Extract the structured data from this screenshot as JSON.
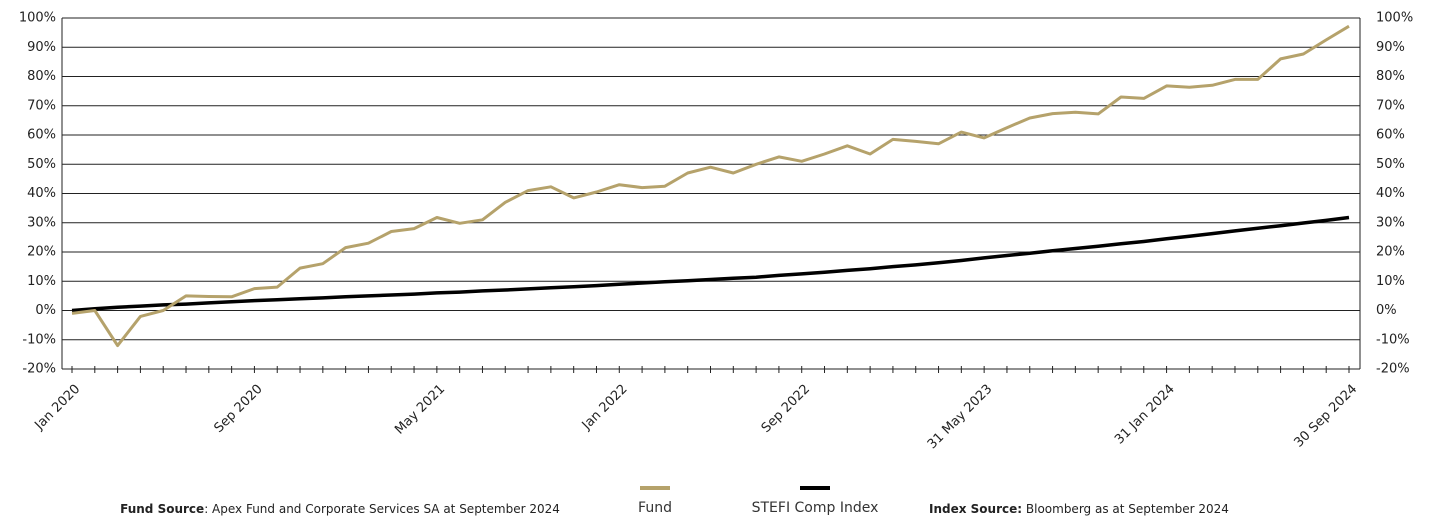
{
  "chart_data": {
    "type": "line",
    "categories": [
      "Jan 2020",
      null,
      null,
      null,
      null,
      null,
      null,
      null,
      "Sep 2020",
      null,
      null,
      null,
      null,
      null,
      null,
      null,
      "May 2021",
      null,
      null,
      null,
      null,
      null,
      null,
      null,
      "Jan 2022",
      null,
      null,
      null,
      null,
      null,
      null,
      null,
      "Sep 2022",
      null,
      null,
      null,
      null,
      null,
      null,
      null,
      "31 May 2023",
      null,
      null,
      null,
      null,
      null,
      null,
      null,
      "31 Jan 2024",
      null,
      null,
      null,
      null,
      null,
      null,
      null,
      "30 Sep 2024"
    ],
    "series": [
      {
        "name": "Fund",
        "color": "#b5a26b",
        "values": [
          -1,
          0,
          -12,
          -2,
          0,
          5,
          4.8,
          4.7,
          7.5,
          8,
          14.5,
          16,
          21.5,
          23,
          27,
          28,
          31.8,
          29.8,
          31,
          37,
          41,
          42.3,
          38.5,
          40.5,
          43,
          42,
          42.5,
          47,
          49,
          47,
          50,
          52.5,
          51,
          53.5,
          56.3,
          53.5,
          58.5,
          57.8,
          57,
          61,
          59,
          62.5,
          65.8,
          67.3,
          67.8,
          67.2,
          73,
          72.5,
          76.8,
          76.3,
          77,
          79,
          79,
          86,
          87.7,
          92.5,
          97.2
        ]
      },
      {
        "name": "STEFI Comp Index",
        "color": "#000000",
        "values": [
          0,
          0.6,
          1.1,
          1.5,
          1.9,
          2.2,
          2.6,
          3.0,
          3.4,
          3.7,
          4.0,
          4.3,
          4.7,
          5.0,
          5.3,
          5.6,
          6.0,
          6.3,
          6.7,
          7.0,
          7.4,
          7.8,
          8.1,
          8.5,
          9.0,
          9.4,
          9.8,
          10.2,
          10.6,
          11.0,
          11.4,
          12.0,
          12.5,
          13.1,
          13.7,
          14.3,
          15.0,
          15.6,
          16.3,
          17.1,
          18.0,
          18.8,
          19.6,
          20.4,
          21.2,
          22.0,
          22.8,
          23.6,
          24.5,
          25.4,
          26.3,
          27.2,
          28.1,
          29.0,
          29.9,
          30.8,
          31.8
        ]
      }
    ],
    "ylim": [
      -20,
      100
    ],
    "yticks": [
      {
        "value": -20,
        "label": "-20%"
      },
      {
        "value": -10,
        "label": "-10%"
      },
      {
        "value": 0,
        "label": "0%"
      },
      {
        "value": 10,
        "label": "10%"
      },
      {
        "value": 20,
        "label": "20%"
      },
      {
        "value": 30,
        "label": "30%"
      },
      {
        "value": 40,
        "label": "40%"
      },
      {
        "value": 50,
        "label": "50%"
      },
      {
        "value": 60,
        "label": "60%"
      },
      {
        "value": 70,
        "label": "70%"
      },
      {
        "value": 80,
        "label": "80%"
      },
      {
        "value": 90,
        "label": "90%"
      },
      {
        "value": 100,
        "label": "100%"
      }
    ],
    "grid": true,
    "legend": "bottom",
    "notes": [
      {
        "label": "Fund Source",
        "text": ": Apex Fund and Corporate Services SA at September 2024"
      },
      {
        "label": "Index Source:",
        "text": " Bloomberg as at September 2024"
      }
    ]
  }
}
